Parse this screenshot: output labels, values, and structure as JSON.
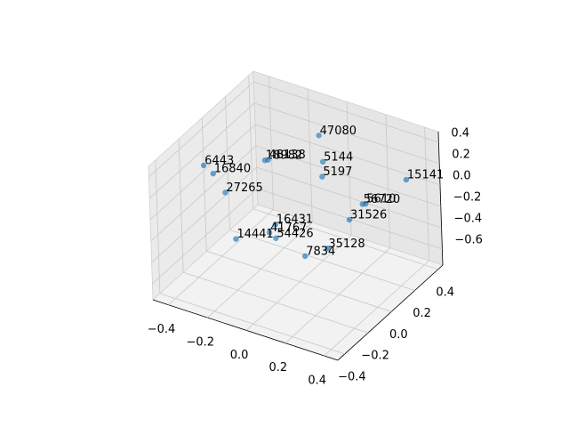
{
  "chart_data": {
    "type": "scatter3d",
    "labels": [
      "47080",
      "6443",
      "16840",
      "18982",
      "48138",
      "5144",
      "5197",
      "15141",
      "27265",
      "56720",
      "5610",
      "31526",
      "16431",
      "41767",
      "14441",
      "54426",
      "35128",
      "7834"
    ],
    "x": [
      -0.02,
      -0.33,
      -0.32,
      -0.18,
      -0.17,
      -0.01,
      -0.01,
      0.32,
      -0.31,
      0.17,
      0.18,
      0.13,
      -0.13,
      -0.15,
      -0.25,
      -0.13,
      0.08,
      0.0
    ],
    "y": [
      0.23,
      -0.24,
      -0.18,
      0.03,
      0.04,
      0.24,
      0.23,
      0.4,
      -0.1,
      0.27,
      0.28,
      0.22,
      0.02,
      0.0,
      -0.12,
      0.02,
      0.11,
      0.05
    ],
    "z": [
      0.38,
      0.38,
      0.25,
      0.25,
      0.25,
      0.13,
      0.0,
      0.0,
      0.0,
      -0.19,
      -0.19,
      -0.31,
      -0.31,
      -0.38,
      -0.38,
      -0.44,
      -0.5,
      -0.56
    ],
    "color": "#1f77b4",
    "xlim": [
      -0.48,
      0.47
    ],
    "ylim": [
      -0.46,
      0.44
    ],
    "zlim": [
      -0.75,
      0.5
    ],
    "xticks": [
      {
        "value": -0.4,
        "label": "−0.4"
      },
      {
        "value": -0.2,
        "label": "−0.2"
      },
      {
        "value": 0,
        "label": "0.0"
      },
      {
        "value": 0.2,
        "label": "0.2"
      },
      {
        "value": 0.4,
        "label": "0.4"
      }
    ],
    "yticks": [
      {
        "value": -0.4,
        "label": "−0.4"
      },
      {
        "value": -0.2,
        "label": "−0.2"
      },
      {
        "value": 0,
        "label": "0.0"
      },
      {
        "value": 0.2,
        "label": "0.2"
      },
      {
        "value": 0.4,
        "label": "0.4"
      }
    ],
    "zticks": [
      {
        "value": -0.6,
        "label": "−0.6"
      },
      {
        "value": -0.4,
        "label": "−0.4"
      },
      {
        "value": -0.2,
        "label": "−0.2"
      },
      {
        "value": 0,
        "label": "0.0"
      },
      {
        "value": 0.2,
        "label": "0.2"
      },
      {
        "value": 0.4,
        "label": "0.4"
      }
    ],
    "grid": true
  }
}
